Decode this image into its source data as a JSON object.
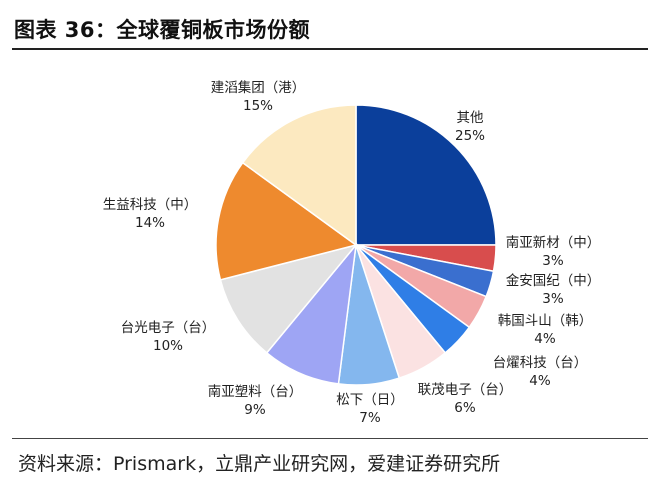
{
  "header": {
    "title": "图表 36：全球覆铜板市场份额"
  },
  "footer": {
    "source": "资料来源：Prismark，立鼎产业研究网，爱建证券研究所"
  },
  "chart_data": {
    "type": "pie",
    "title": "全球覆铜板市场份额",
    "unit": "%",
    "slices": [
      {
        "name": "其他",
        "value": 25,
        "value_label": "25%",
        "color": "#0b3f9b"
      },
      {
        "name": "南亚新材（中）",
        "value": 3,
        "value_label": "3%",
        "color": "#d84d4d"
      },
      {
        "name": "金安国纪（中）",
        "value": 3,
        "value_label": "3%",
        "color": "#3a6fcf"
      },
      {
        "name": "韩国斗山（韩）",
        "value": 4,
        "value_label": "4%",
        "color": "#f2a8a8"
      },
      {
        "name": "台燿科技（台）",
        "value": 4,
        "value_label": "4%",
        "color": "#2f7ee6"
      },
      {
        "name": "联茂电子（台）",
        "value": 6,
        "value_label": "6%",
        "color": "#fbe2e2"
      },
      {
        "name": "松下（日）",
        "value": 7,
        "value_label": "7%",
        "color": "#84b7ee"
      },
      {
        "name": "南亚塑料（台）",
        "value": 9,
        "value_label": "9%",
        "color": "#9ea5f4"
      },
      {
        "name": "台光电子（台）",
        "value": 10,
        "value_label": "10%",
        "color": "#e2e2e2"
      },
      {
        "name": "生益科技（中）",
        "value": 14,
        "value_label": "14%",
        "color": "#ee8a2e"
      },
      {
        "name": "建滔集团（港）",
        "value": 15,
        "value_label": "15%",
        "color": "#fce9c0"
      }
    ]
  }
}
